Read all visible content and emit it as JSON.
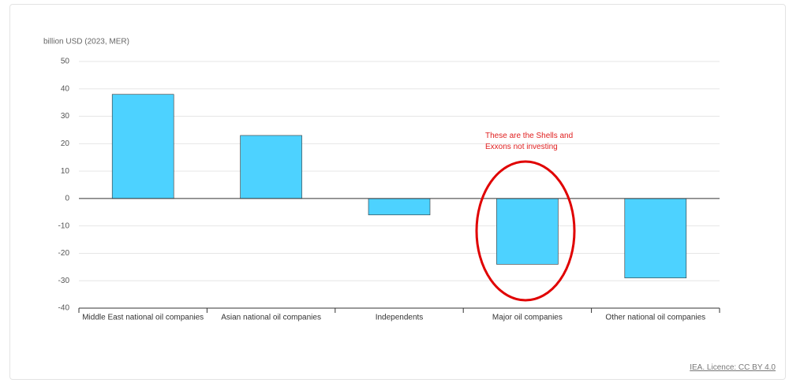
{
  "chart_data": {
    "type": "bar",
    "y_label": "billion USD (2023, MER)",
    "categories": [
      "Middle East national oil companies",
      "Asian national oil companies",
      "Independents",
      "Major oil companies",
      "Other national oil companies"
    ],
    "values": [
      38,
      23,
      -6,
      -24,
      -29
    ],
    "color": "#4dd2ff",
    "ylim": [
      -40,
      50
    ],
    "yticks": [
      -40,
      -30,
      -20,
      -10,
      0,
      10,
      20,
      30,
      40,
      50
    ],
    "grid": true,
    "annotation": "These are the Shells and Exxons not investing",
    "source": "IEA. Licence: CC BY 4.0"
  }
}
